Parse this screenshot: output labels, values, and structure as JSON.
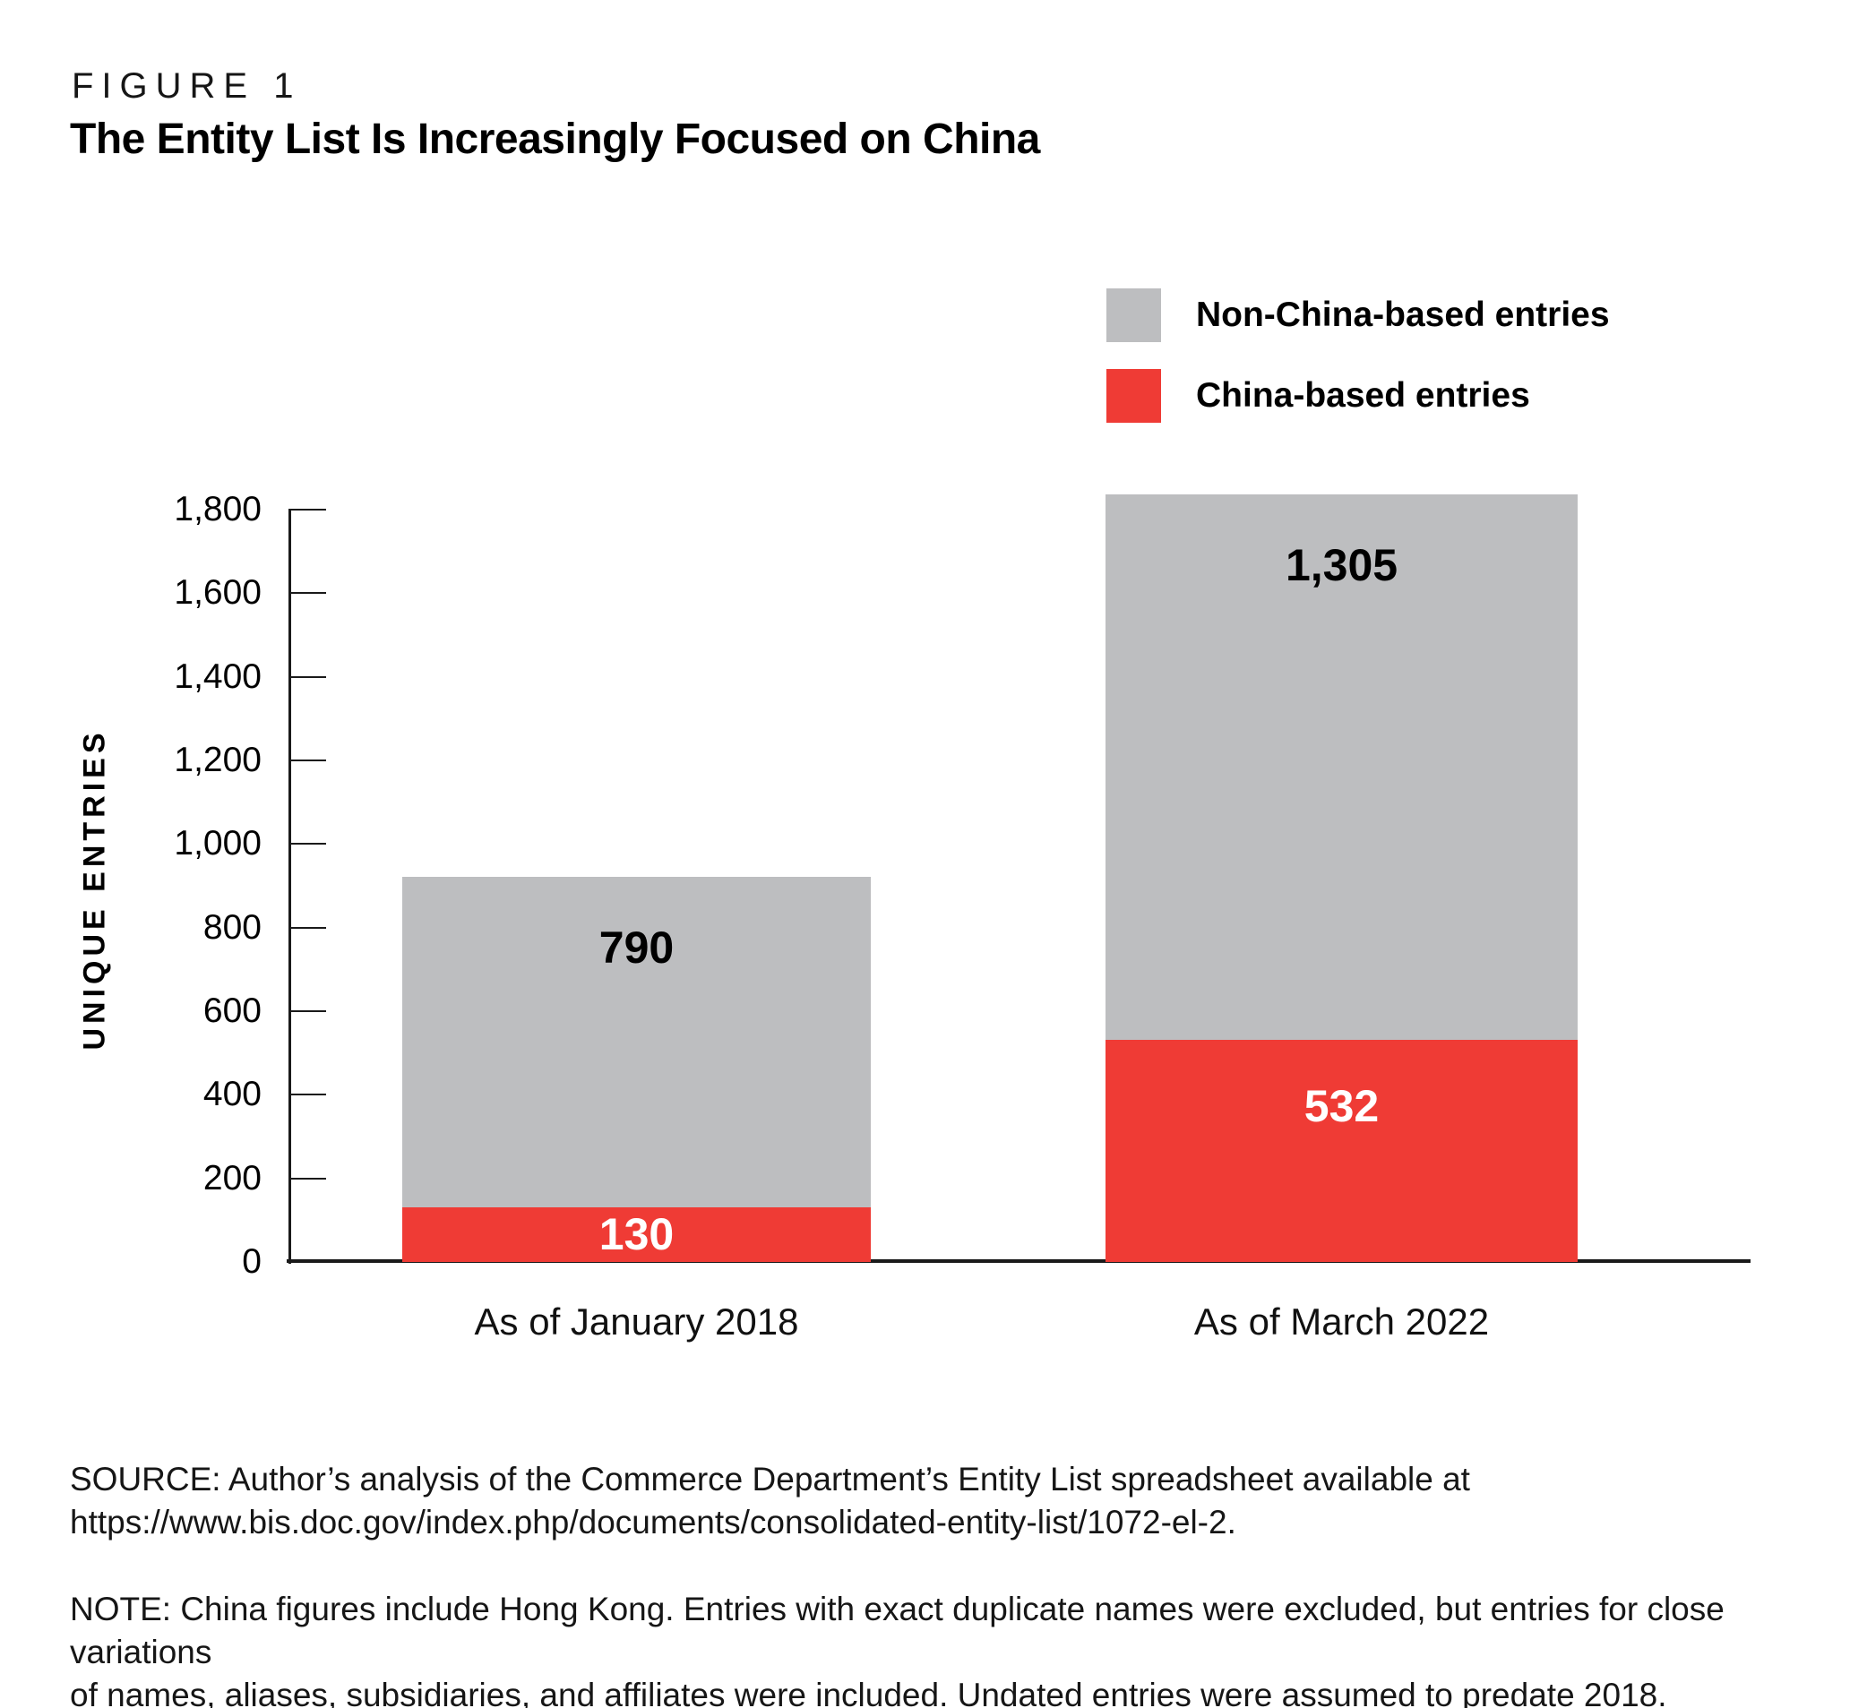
{
  "figure": {
    "label": "FIGURE 1",
    "title": "The Entity List Is Increasingly Focused on China"
  },
  "legend": [
    {
      "label": "Non-China-based entries",
      "color": "#BDBEC0"
    },
    {
      "label": "China-based entries",
      "color": "#EF3B35"
    }
  ],
  "chart_data": {
    "type": "bar",
    "stacked": true,
    "title": "The Entity List Is Increasingly Focused on China",
    "categories": [
      "As of January 2018",
      "As of March 2022"
    ],
    "series": [
      {
        "name": "China-based entries",
        "color": "#EF3B35",
        "values": [
          130,
          532
        ]
      },
      {
        "name": "Non-China-based entries",
        "color": "#BDBEC0",
        "values": [
          790,
          1305
        ]
      }
    ],
    "totals": [
      920,
      1837
    ],
    "ylabel": "UNIQUE ENTRIES",
    "xlabel": "",
    "ylim": [
      0,
      1800
    ],
    "ytick_step": 200,
    "grid": false,
    "legend_position": "top-right"
  },
  "footer": {
    "source_lines": [
      "SOURCE: Author’s analysis of the Commerce Department’s Entity List spreadsheet available at",
      "https://www.bis.doc.gov/index.php/documents/consolidated-entity-list/1072-el-2."
    ],
    "note_lines": [
      "NOTE: China figures include Hong Kong. Entries with exact duplicate names were excluded, but entries for close variations",
      "of names, aliases, subsidiaries, and affiliates were included. Undated entries were assumed to predate 2018."
    ]
  }
}
